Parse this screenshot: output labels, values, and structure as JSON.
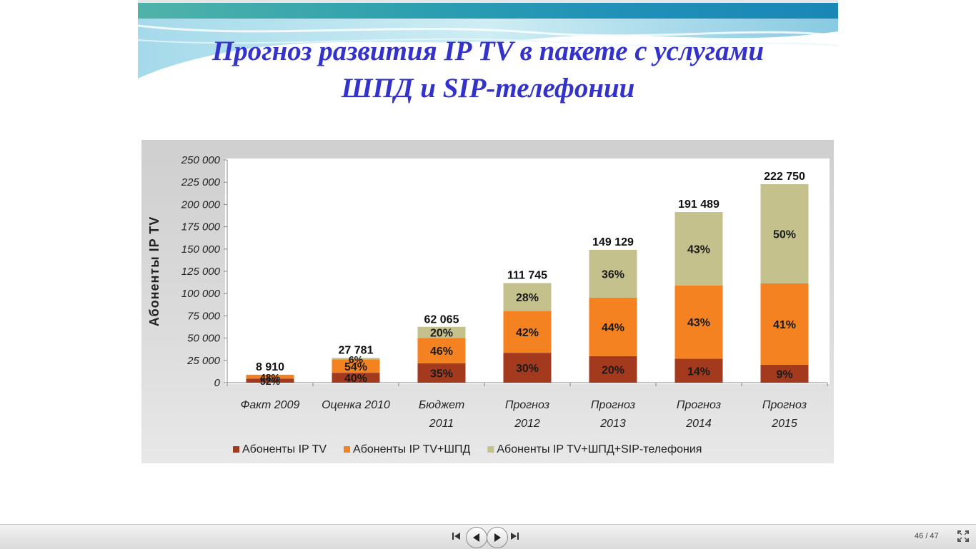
{
  "slide": {
    "title_line1": "Прогноз развития IP TV в пакете с услугами",
    "title_line2": "ШПД и SIP-телефонии"
  },
  "chart_data": {
    "type": "bar",
    "stacked": true,
    "ylabel": "Абоненты IP TV",
    "ylim": [
      0,
      250000
    ],
    "yticks": [
      "0",
      "25 000",
      "50 000",
      "75 000",
      "100 000",
      "125 000",
      "150 000",
      "175 000",
      "200 000",
      "225 000",
      "250 000"
    ],
    "categories": [
      "Факт 2009",
      "Оценка 2010",
      "Бюджет 2011",
      "Прогноз 2012",
      "Прогноз 2013",
      "Прогноз 2014",
      "Прогноз 2015"
    ],
    "category_lines": [
      [
        "Факт 2009"
      ],
      [
        "Оценка 2010"
      ],
      [
        "Бюджет",
        "2011"
      ],
      [
        "Прогноз",
        "2012"
      ],
      [
        "Прогноз",
        "2013"
      ],
      [
        "Прогноз",
        "2014"
      ],
      [
        "Прогноз",
        "2015"
      ]
    ],
    "totals": [
      8910,
      27781,
      62065,
      111745,
      149129,
      191489,
      222750
    ],
    "total_labels": [
      "8 910",
      "27 781",
      "62 065",
      "111 745",
      "149 129",
      "191 489",
      "222 750"
    ],
    "series": [
      {
        "name": "Абоненты IP TV",
        "color": "#a33a1e",
        "values": [
          4633,
          11112,
          21723,
          33524,
          29826,
          26808,
          20048
        ],
        "labels": [
          "52%",
          "40%",
          "35%",
          "30%",
          "20%",
          "14%",
          "9%"
        ]
      },
      {
        "name": "Абоненты IP TV+ШПД",
        "color": "#f58220",
        "values": [
          4277,
          15002,
          28550,
          46933,
          65617,
          82340,
          91328
        ],
        "labels": [
          "48%",
          "54%",
          "46%",
          "42%",
          "44%",
          "43%",
          "41%"
        ]
      },
      {
        "name": "Абоненты IP TV+ШПД+SIP-телефония",
        "color": "#c4c18c",
        "values": [
          0,
          1667,
          12413,
          31289,
          53686,
          82341,
          111375
        ],
        "labels": [
          "",
          "6%",
          "20%",
          "28%",
          "36%",
          "43%",
          "50%"
        ]
      }
    ],
    "legend_position": "bottom",
    "grid": false
  },
  "navbar": {
    "icons": {
      "first": "skip-first-icon",
      "prev": "prev-icon",
      "next": "next-icon",
      "last": "skip-last-icon",
      "fullscreen": "fullscreen-icon"
    },
    "current_page": "46",
    "total_pages": "/ 47"
  }
}
